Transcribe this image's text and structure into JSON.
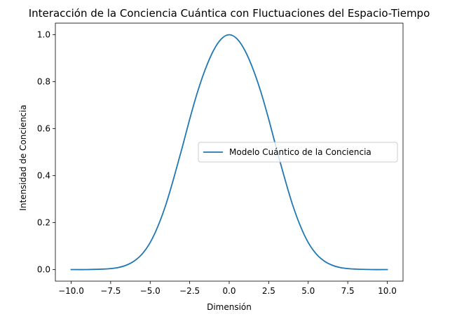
{
  "chart_data": {
    "type": "line",
    "title": "Interacción de la Conciencia Cuántica con Fluctuaciones del Espacio-Tiempo",
    "xlabel": "Dimensión",
    "ylabel": "Intensidad de Conciencia",
    "xlim": [
      -10.0,
      10.0
    ],
    "ylim": [
      0.0,
      1.0
    ],
    "xticks": [
      -10.0,
      -7.5,
      -5.0,
      -2.5,
      0.0,
      2.5,
      5.0,
      7.5,
      10.0
    ],
    "xtick_labels": [
      "−10.0",
      "−7.5",
      "−5.0",
      "−2.5",
      "0.0",
      "2.5",
      "5.0",
      "7.5",
      "10.0"
    ],
    "yticks": [
      0.0,
      0.2,
      0.4,
      0.6,
      0.8,
      1.0
    ],
    "ytick_labels": [
      "0.0",
      "0.2",
      "0.4",
      "0.6",
      "0.8",
      "1.0"
    ],
    "grid": false,
    "legend_position": "center-right",
    "series": [
      {
        "name": "Modelo Cuántico de la Conciencia",
        "color": "#1f77b4",
        "x": [
          -10,
          -9,
          -8,
          -7.5,
          -7,
          -6.5,
          -6,
          -5.5,
          -5,
          -4.5,
          -4,
          -3.5,
          -3,
          -2.5,
          -2,
          -1.5,
          -1,
          -0.5,
          0,
          0.5,
          1,
          1.5,
          2,
          2.5,
          3,
          3.5,
          4,
          4.5,
          5,
          5.5,
          6,
          6.5,
          7,
          7.5,
          8,
          9,
          10
        ],
        "y": [
          0.0,
          0.0,
          0.002,
          0.004,
          0.009,
          0.019,
          0.037,
          0.067,
          0.115,
          0.186,
          0.278,
          0.391,
          0.513,
          0.64,
          0.757,
          0.855,
          0.932,
          0.982,
          1.0,
          0.982,
          0.932,
          0.855,
          0.757,
          0.64,
          0.513,
          0.391,
          0.278,
          0.186,
          0.115,
          0.067,
          0.037,
          0.019,
          0.009,
          0.004,
          0.002,
          0.0,
          0.0
        ]
      }
    ]
  }
}
